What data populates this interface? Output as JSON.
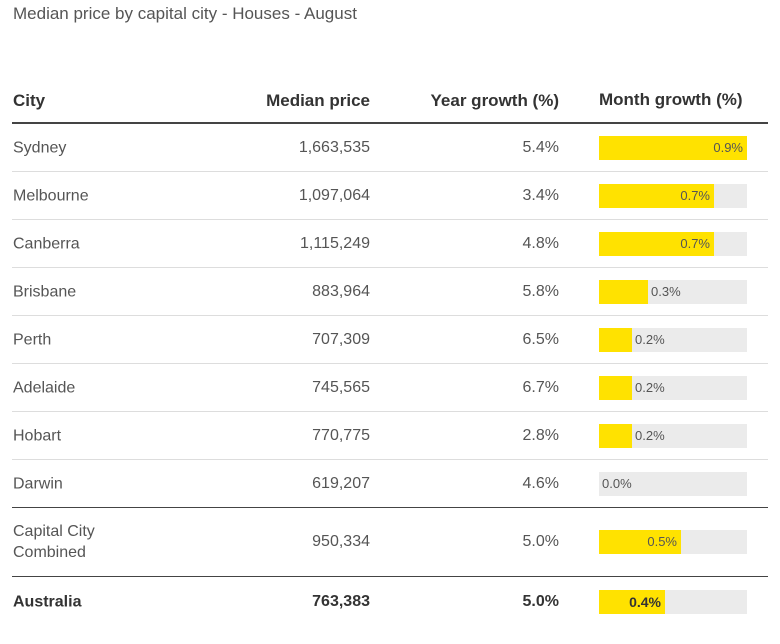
{
  "title": "Median price by capital city - Houses - August",
  "colors": {
    "bar": "#ffe200",
    "track": "#ebebeb"
  },
  "chart_data": {
    "type": "table",
    "title": "Median price by capital city - Houses - August",
    "columns": [
      "City",
      "Median price",
      "Year growth (%)",
      "Month growth (%)"
    ],
    "bar_max": 0.9,
    "rows": [
      {
        "city": "Sydney",
        "price": "1,663,535",
        "year": "5.4%",
        "month": 0.9,
        "month_label": "0.9%"
      },
      {
        "city": "Melbourne",
        "price": "1,097,064",
        "year": "3.4%",
        "month": 0.7,
        "month_label": "0.7%"
      },
      {
        "city": "Canberra",
        "price": "1,115,249",
        "year": "4.8%",
        "month": 0.7,
        "month_label": "0.7%"
      },
      {
        "city": "Brisbane",
        "price": "883,964",
        "year": "5.8%",
        "month": 0.3,
        "month_label": "0.3%"
      },
      {
        "city": "Perth",
        "price": "707,309",
        "year": "6.5%",
        "month": 0.2,
        "month_label": "0.2%"
      },
      {
        "city": "Adelaide",
        "price": "745,565",
        "year": "6.7%",
        "month": 0.2,
        "month_label": "0.2%"
      },
      {
        "city": "Hobart",
        "price": "770,775",
        "year": "2.8%",
        "month": 0.2,
        "month_label": "0.2%"
      },
      {
        "city": "Darwin",
        "price": "619,207",
        "year": "4.6%",
        "month": 0.0,
        "month_label": "0.0%"
      },
      {
        "city": "Capital City Combined",
        "price": "950,334",
        "year": "5.0%",
        "month": 0.5,
        "month_label": "0.5%"
      },
      {
        "city": "Australia",
        "price": "763,383",
        "year": "5.0%",
        "month": 0.4,
        "month_label": "0.4%"
      }
    ]
  }
}
